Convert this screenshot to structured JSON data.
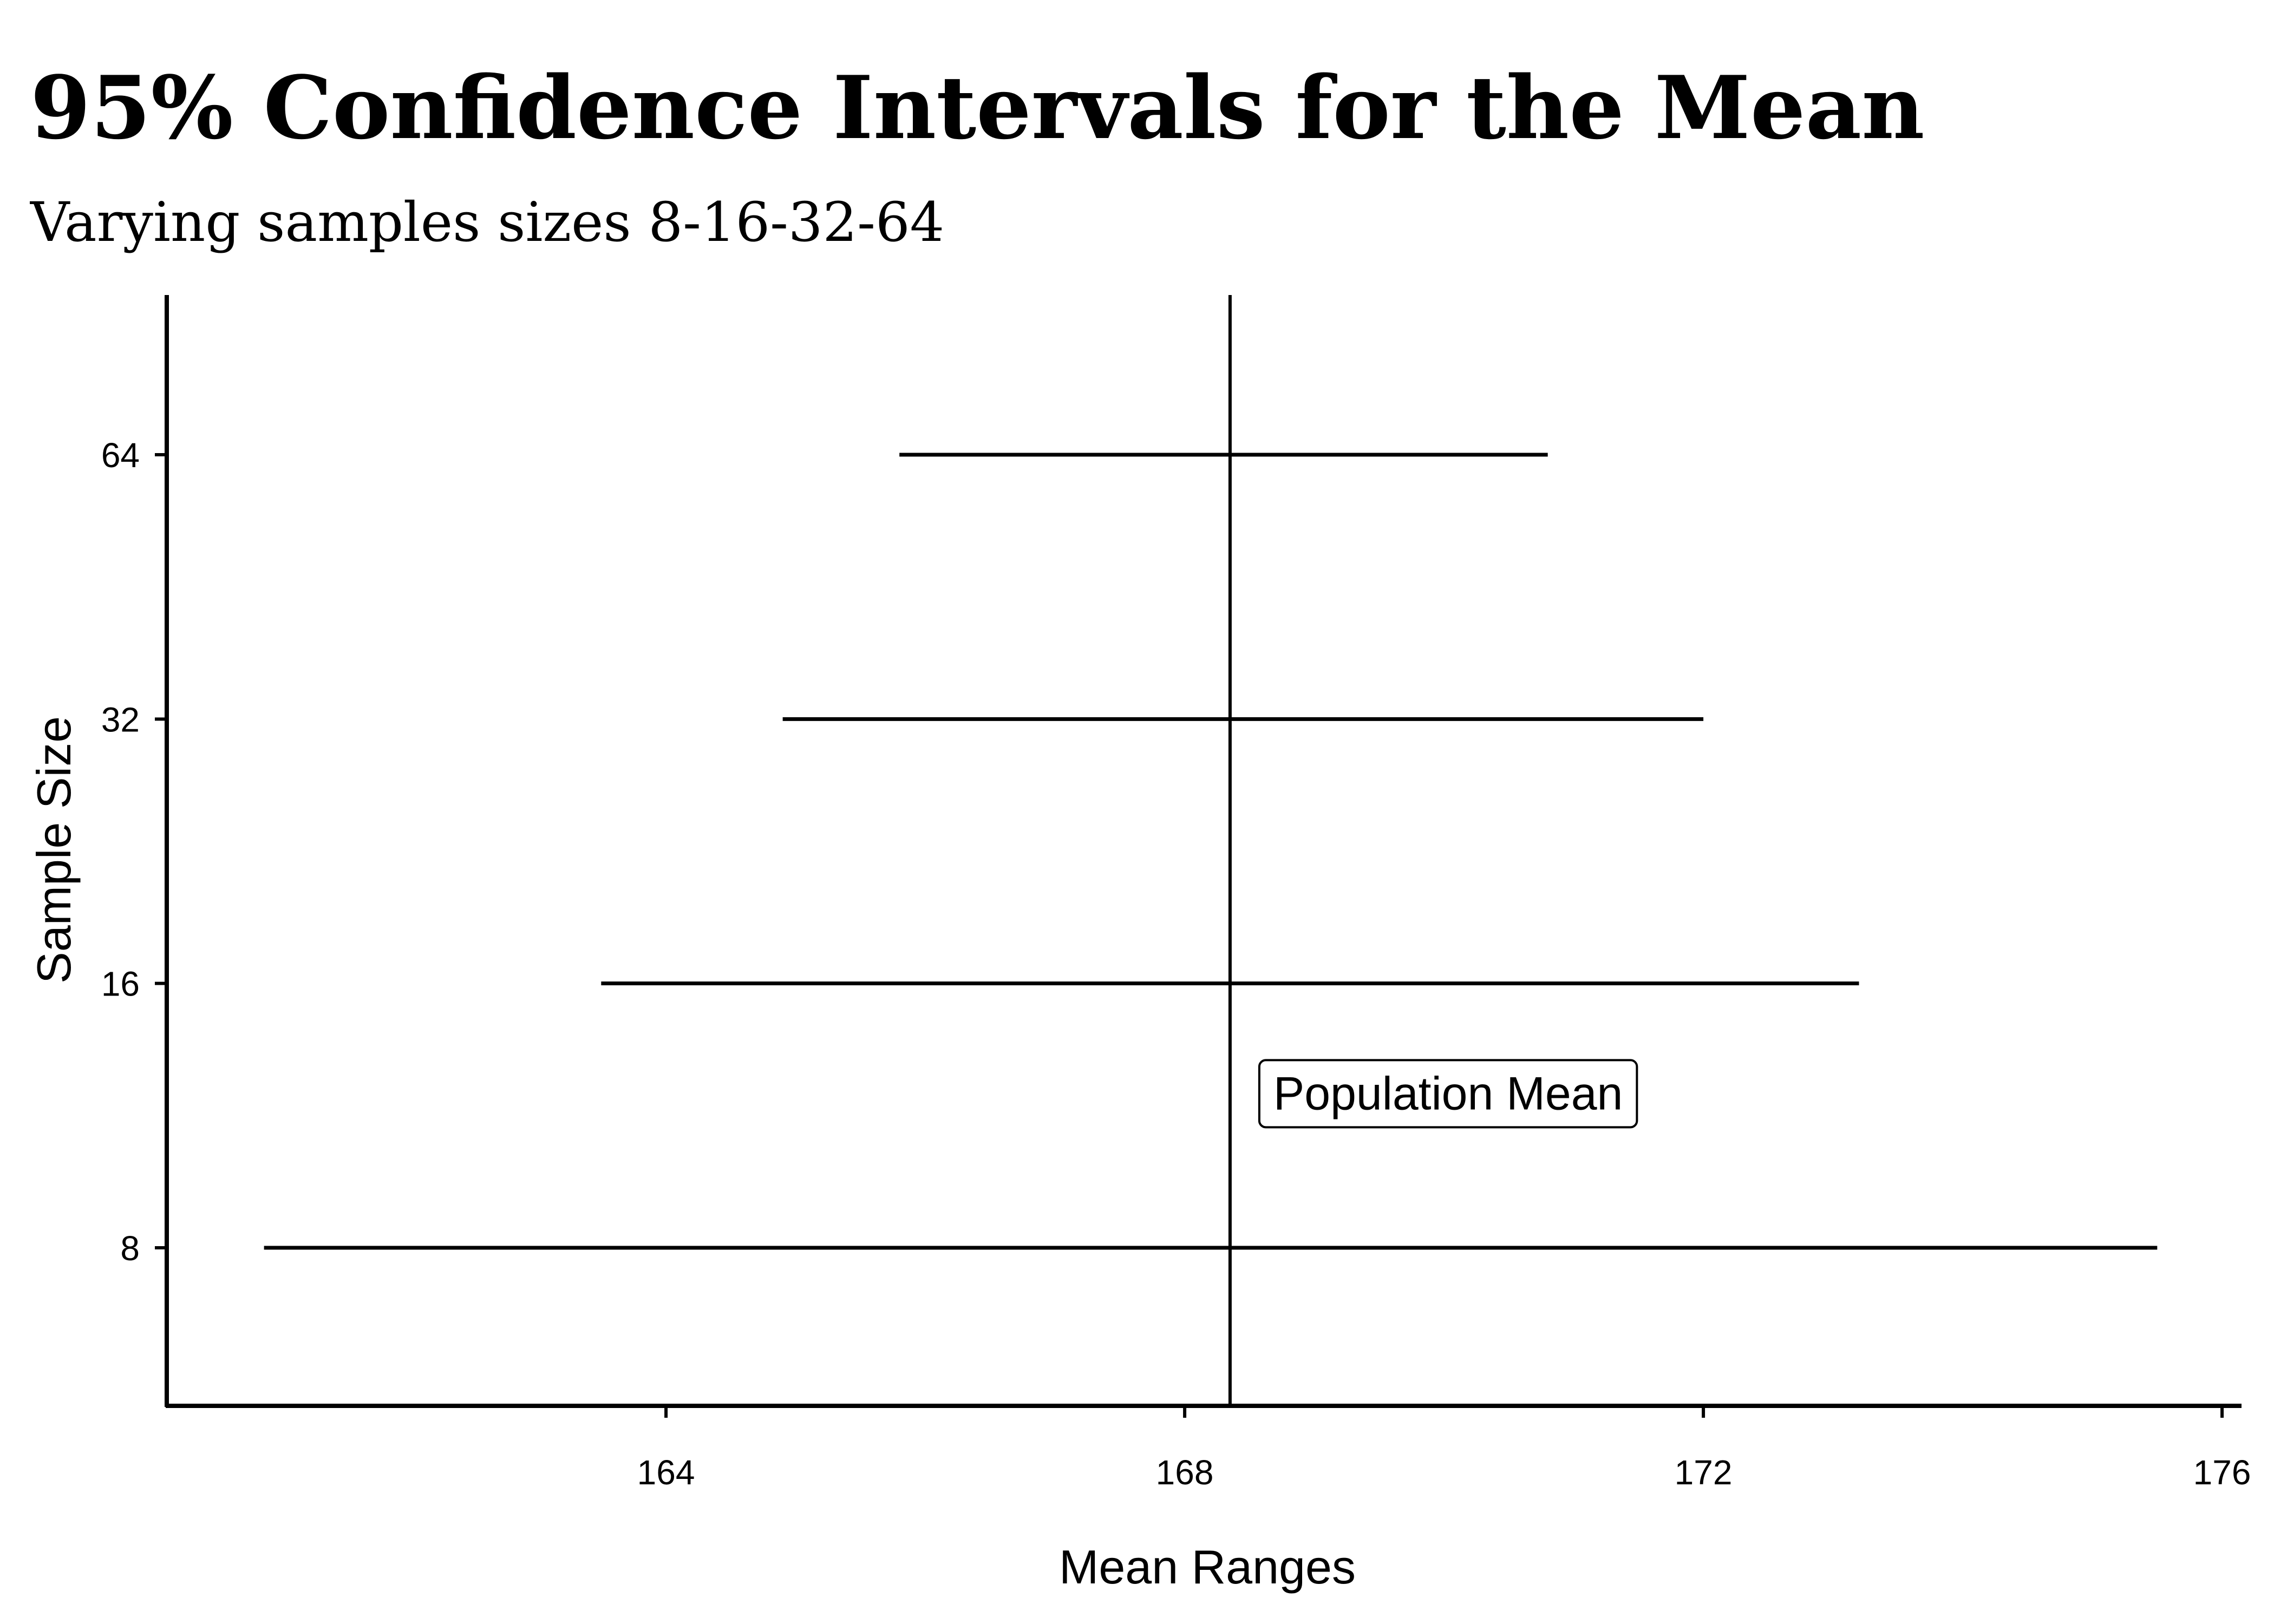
{
  "chart_data": {
    "type": "errorbar",
    "orientation": "horizontal",
    "title": "95% Confidence Intervals for the Mean",
    "subtitle": "Varying samples sizes 8-16-32-64",
    "xlabel": "Mean Ranges",
    "ylabel": "Sample Size",
    "x_ticks": [
      164,
      168,
      172,
      176
    ],
    "y_ticks": [
      8,
      16,
      32,
      64
    ],
    "xlim": [
      160.15,
      176.15
    ],
    "grid": false,
    "legend": "none",
    "intervals": [
      {
        "sample_size": 8,
        "lower": 160.9,
        "upper": 175.5
      },
      {
        "sample_size": 16,
        "lower": 163.5,
        "upper": 173.2
      },
      {
        "sample_size": 32,
        "lower": 164.9,
        "upper": 172.0
      },
      {
        "sample_size": 64,
        "lower": 165.8,
        "upper": 170.8
      }
    ],
    "reference_line": {
      "value": 168.35,
      "label": "Population Mean",
      "label_sample_level": 12
    },
    "colors": {
      "interval": "#000000",
      "reference_line": "#000000",
      "axis": "#000000",
      "background": "#ffffff"
    }
  }
}
